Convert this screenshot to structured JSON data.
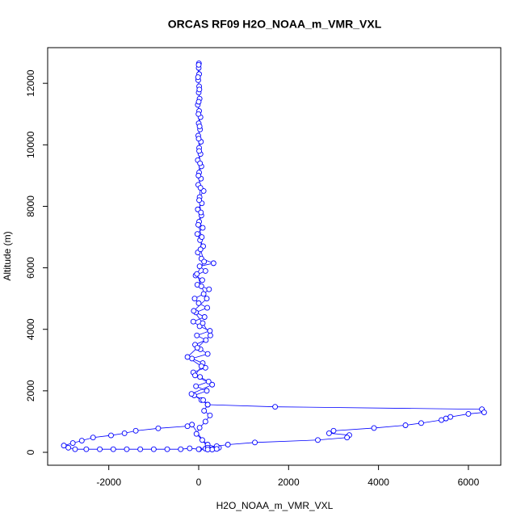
{
  "chart_data": {
    "type": "scatter",
    "connect": true,
    "color": "#0000ff",
    "title": "ORCAS RF09 H2O_NOAA_m_VMR_VXL",
    "x_label": "H2O_NOAA_m_VMR_VXL",
    "y_label": "Altitude (m)",
    "xlim": [
      -3360,
      6720
    ],
    "ylim": [
      -420,
      13160
    ],
    "xticks": [
      -2000,
      0,
      2000,
      4000,
      6000
    ],
    "yticks": [
      0,
      2000,
      4000,
      6000,
      8000,
      10000,
      12000
    ],
    "x": [
      10,
      150,
      300,
      450,
      200,
      80,
      -50,
      20,
      150,
      250,
      120,
      200,
      60,
      -100,
      180,
      -60,
      220,
      30,
      -120,
      150,
      90,
      -150,
      200,
      40,
      -80,
      160,
      -40,
      250,
      20,
      -120,
      130,
      -60,
      190,
      0,
      -90,
      110,
      230,
      -30,
      80,
      -70,
      150,
      20,
      330,
      60,
      -20,
      100,
      30,
      -30,
      90,
      10,
      60,
      -20,
      70,
      20,
      110,
      -10,
      50,
      10,
      60,
      -20,
      40,
      10,
      50,
      -10,
      30,
      0,
      40,
      10,
      -20,
      20,
      0,
      10,
      -10,
      10,
      0,
      5,
      0,
      -15,
      15,
      0,
      -5,
      20,
      0,
      10,
      30,
      -5,
      40,
      10,
      50,
      -10,
      70,
      40,
      120,
      -40,
      60,
      180,
      -110,
      90,
      260,
      -30,
      -250,
      60,
      -80,
      300,
      -160,
      100,
      200,
      1700,
      6300,
      6350,
      6000,
      5600,
      5500,
      5400,
      4950,
      4600,
      3900,
      3000,
      2900,
      3350,
      3300,
      2650,
      1250,
      650,
      400,
      200,
      -150,
      -250,
      -900,
      -1400,
      -1650,
      -1950,
      -2350,
      -2600,
      -2800,
      -3000,
      -2900,
      -2750,
      -2500,
      -2200,
      -1900,
      -1600,
      -1300,
      -1000,
      -700,
      -400,
      -200,
      0,
      200,
      400
    ],
    "y": [
      100,
      120,
      90,
      150,
      250,
      400,
      600,
      800,
      1000,
      1200,
      1350,
      1550,
      1700,
      1850,
      2000,
      2150,
      2300,
      2450,
      2600,
      2750,
      2900,
      3050,
      3200,
      3350,
      3500,
      3650,
      3800,
      3950,
      4100,
      4250,
      4400,
      4550,
      4700,
      4850,
      5000,
      5150,
      5300,
      5450,
      5600,
      5750,
      5900,
      6050,
      6150,
      6300,
      6500,
      6700,
      6900,
      7100,
      7300,
      7500,
      7700,
      7900,
      8100,
      8300,
      8500,
      8700,
      8900,
      9100,
      9300,
      9500,
      9700,
      9900,
      10100,
      10300,
      10500,
      10700,
      10900,
      11100,
      11300,
      11500,
      11700,
      11900,
      12100,
      12300,
      12500,
      12650,
      12600,
      12200,
      11800,
      11400,
      11000,
      10600,
      10200,
      9800,
      9400,
      9000,
      8600,
      8200,
      7800,
      7400,
      7000,
      6600,
      6200,
      5800,
      5400,
      5000,
      4600,
      4200,
      3800,
      3400,
      3100,
      2800,
      2500,
      2200,
      1900,
      1700,
      1550,
      1480,
      1400,
      1300,
      1250,
      1150,
      1100,
      1050,
      950,
      880,
      790,
      700,
      620,
      560,
      480,
      400,
      320,
      250,
      200,
      150,
      900,
      850,
      780,
      700,
      620,
      550,
      480,
      380,
      300,
      220,
      150,
      100,
      100,
      100,
      100,
      100,
      100,
      100,
      100,
      100,
      130,
      100,
      90,
      110
    ]
  }
}
